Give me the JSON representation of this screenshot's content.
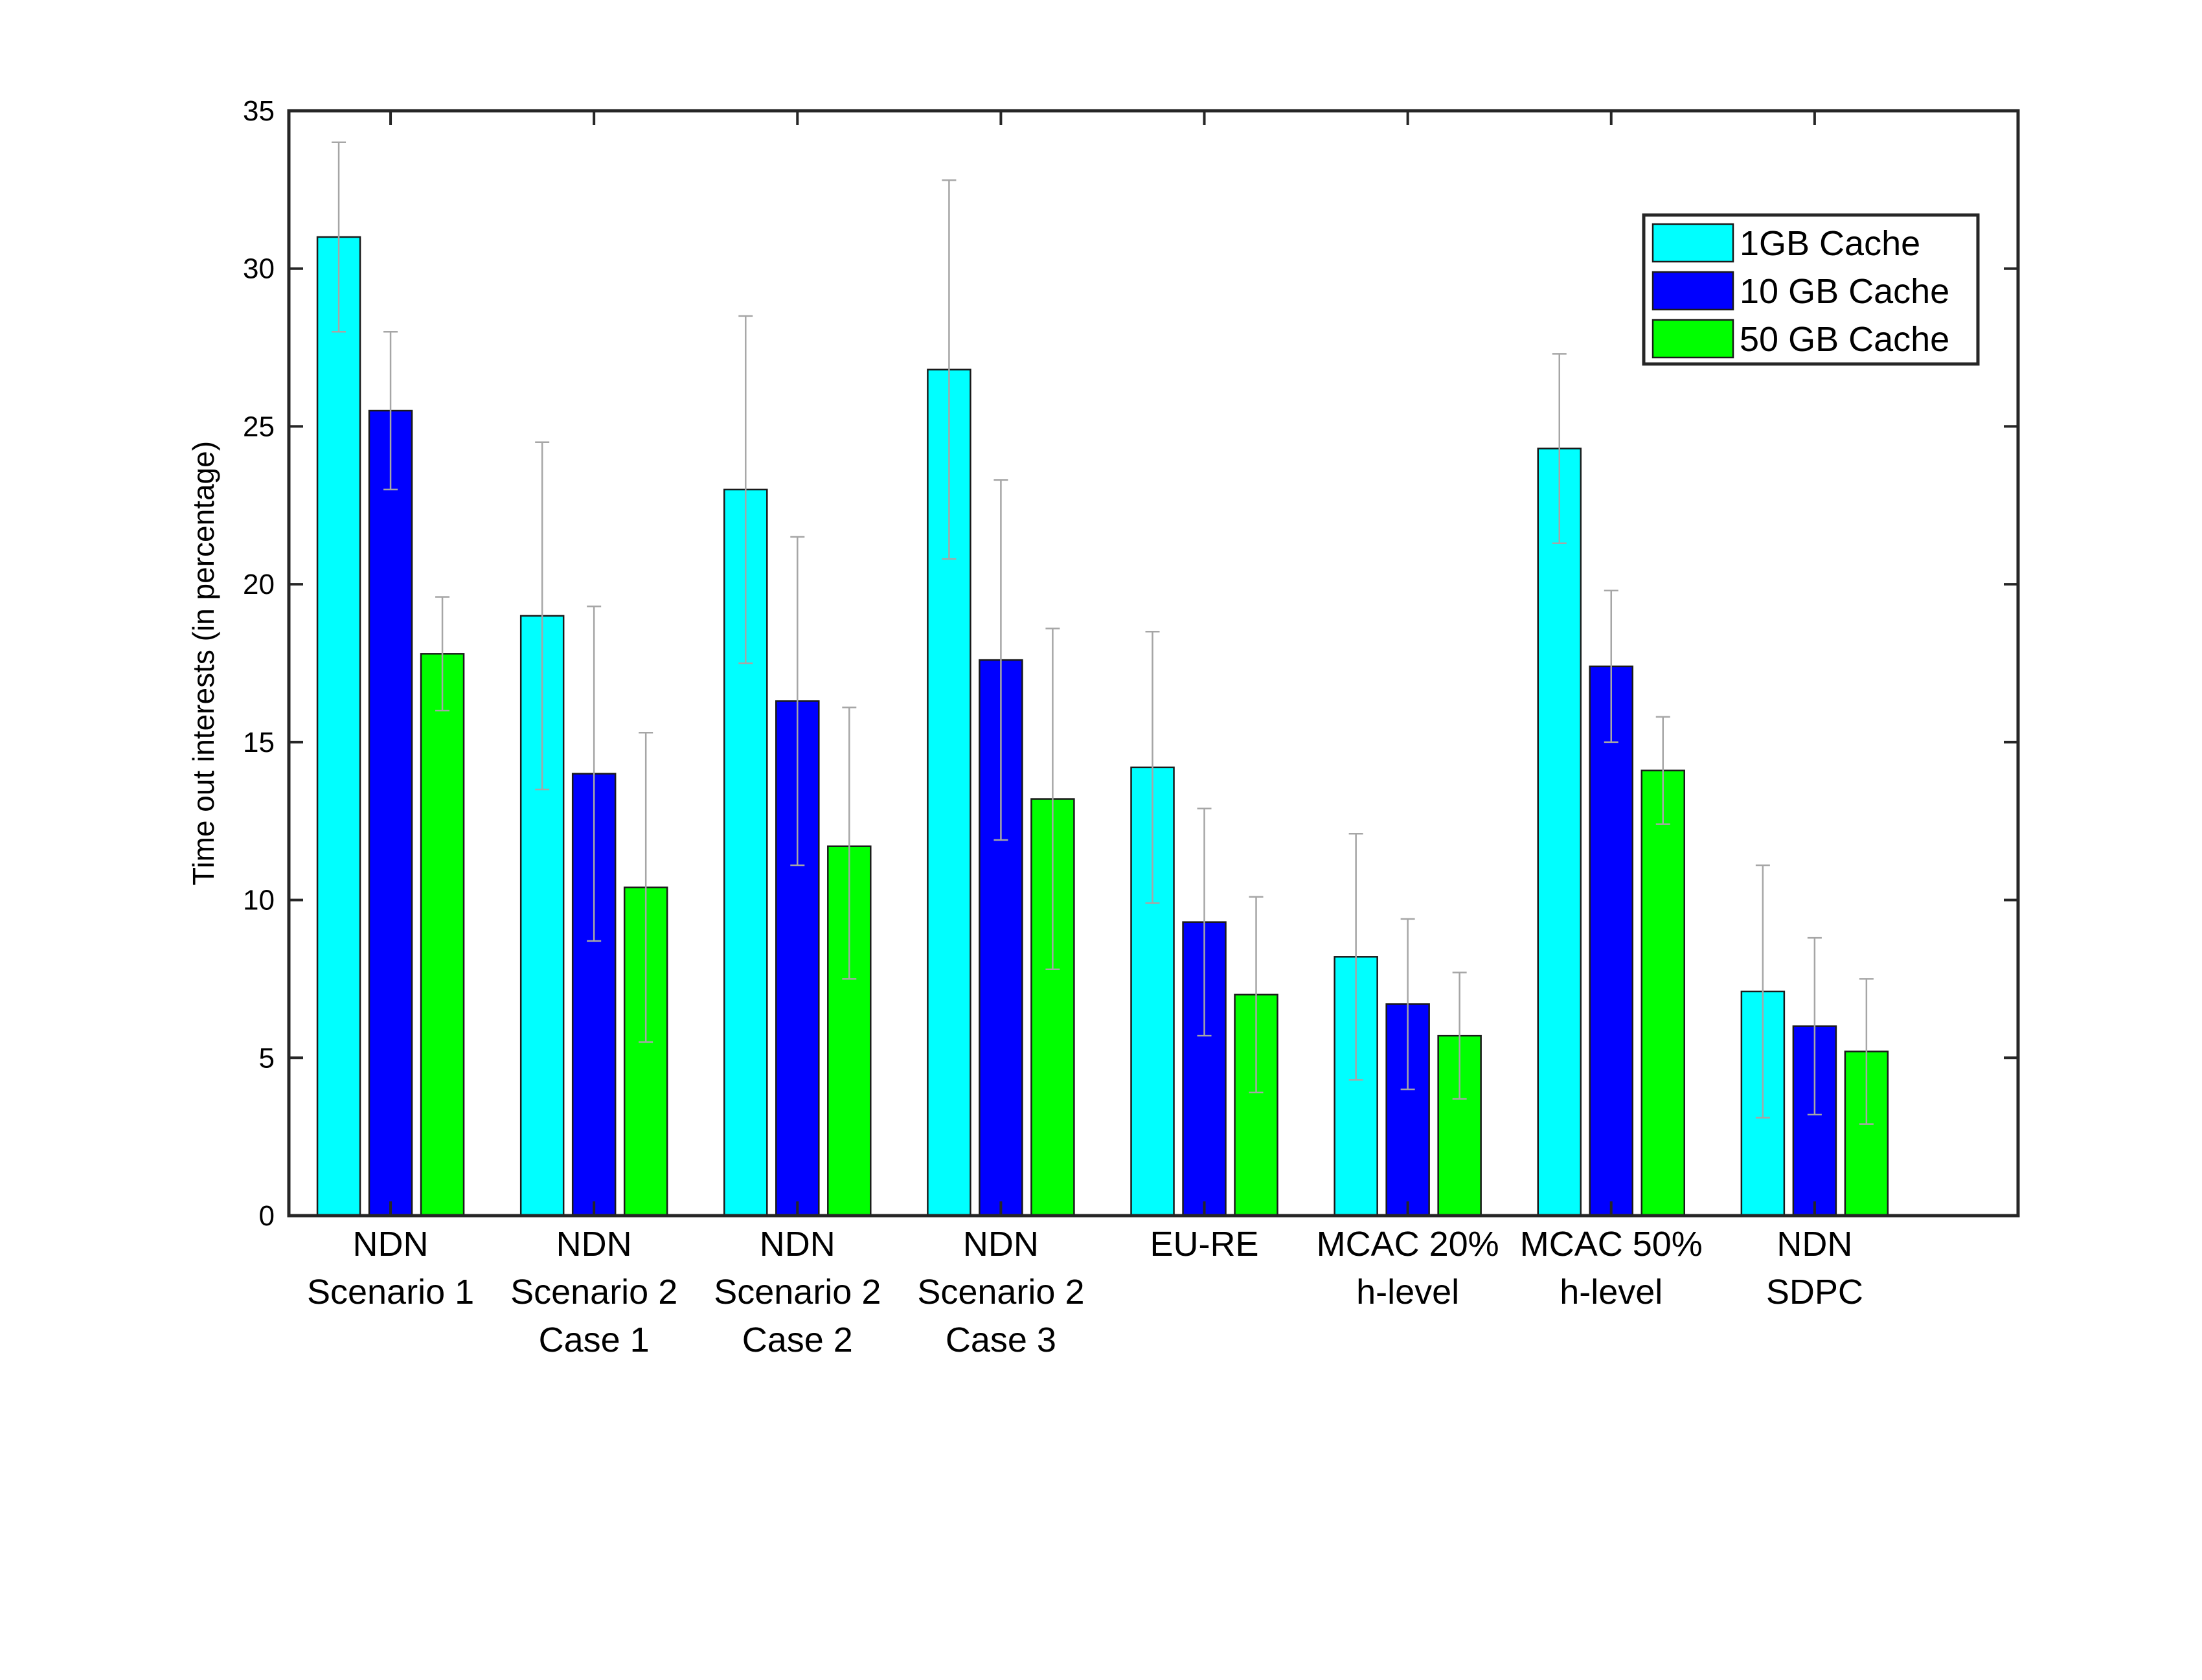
{
  "chart_data": {
    "type": "bar",
    "title": "",
    "xlabel": "",
    "ylabel": "Time out interests (in percentage)",
    "ylim": [
      0,
      35
    ],
    "yticks": [
      "0",
      "5",
      "10",
      "15",
      "20",
      "25",
      "30",
      "35"
    ],
    "grid": false,
    "legend_position": "top-right",
    "categories": [
      [
        "NDN",
        "Scenario 1"
      ],
      [
        "NDN",
        "Scenario 2",
        "Case 1"
      ],
      [
        "NDN",
        "Scenario 2",
        "Case 2"
      ],
      [
        "NDN",
        "Scenario 2",
        "Case 3"
      ],
      [
        "EU-RE"
      ],
      [
        "MCAC 20%",
        "h-level"
      ],
      [
        "MCAC 50%",
        "h-level"
      ],
      [
        "NDN",
        "SDPC"
      ]
    ],
    "series": [
      {
        "name": "1GB Cache",
        "color": "#00ffff",
        "values": [
          31,
          19,
          23,
          26.8,
          14.2,
          8.2,
          24.3,
          7.1
        ],
        "error_low": [
          28,
          13.5,
          17.5,
          20.8,
          9.9,
          4.3,
          21.3,
          3.1
        ],
        "error_high": [
          34,
          24.5,
          28.5,
          32.8,
          18.5,
          12.1,
          27.3,
          11.1
        ]
      },
      {
        "name": "10 GB Cache",
        "color": "#0000ff",
        "values": [
          25.5,
          14,
          16.3,
          17.6,
          9.3,
          6.7,
          17.4,
          6
        ],
        "error_low": [
          23,
          8.7,
          11.1,
          11.9,
          5.7,
          4,
          15,
          3.2
        ],
        "error_high": [
          28,
          19.3,
          21.5,
          23.3,
          12.9,
          9.4,
          19.8,
          8.8
        ]
      },
      {
        "name": "50 GB Cache",
        "color": "#00ff00",
        "values": [
          17.8,
          10.4,
          11.7,
          13.2,
          7,
          5.7,
          14.1,
          5.2
        ],
        "error_low": [
          16,
          5.5,
          7.5,
          7.8,
          3.9,
          3.7,
          12.4,
          2.9
        ],
        "error_high": [
          19.6,
          15.3,
          16.1,
          18.6,
          10.1,
          7.7,
          15.8,
          7.5
        ]
      }
    ]
  }
}
